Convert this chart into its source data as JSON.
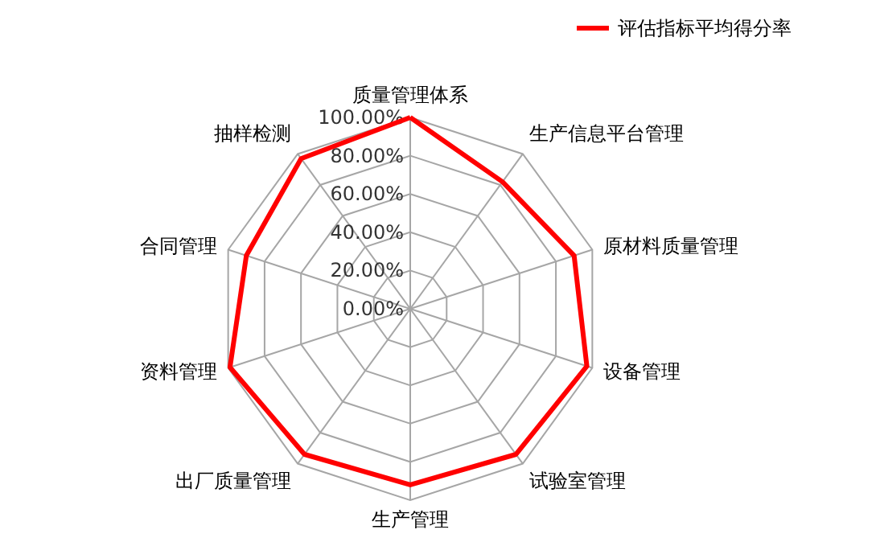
{
  "chart_data": {
    "type": "radar",
    "categories": [
      "质量管理体系",
      "生产信息平台管理",
      "原材料质量管理",
      "设备管理",
      "试验室管理",
      "生产管理",
      "出厂质量管理",
      "资料管理",
      "合同管理",
      "抽样检测"
    ],
    "series": [
      {
        "name": "评估指标平均得分率",
        "color": "#ff0000",
        "values": [
          100,
          82,
          90,
          97,
          94,
          92,
          94,
          99,
          90,
          97
        ]
      }
    ],
    "ylim": [
      0,
      100
    ],
    "yticks": [
      {
        "value": 0,
        "label": "0.00%"
      },
      {
        "value": 20,
        "label": "20.00%"
      },
      {
        "value": 40,
        "label": "40.00%"
      },
      {
        "value": 60,
        "label": "60.00%"
      },
      {
        "value": 80,
        "label": "80.00%"
      },
      {
        "value": 100,
        "label": "100.00%"
      }
    ],
    "grid": true,
    "legend": "top right"
  }
}
